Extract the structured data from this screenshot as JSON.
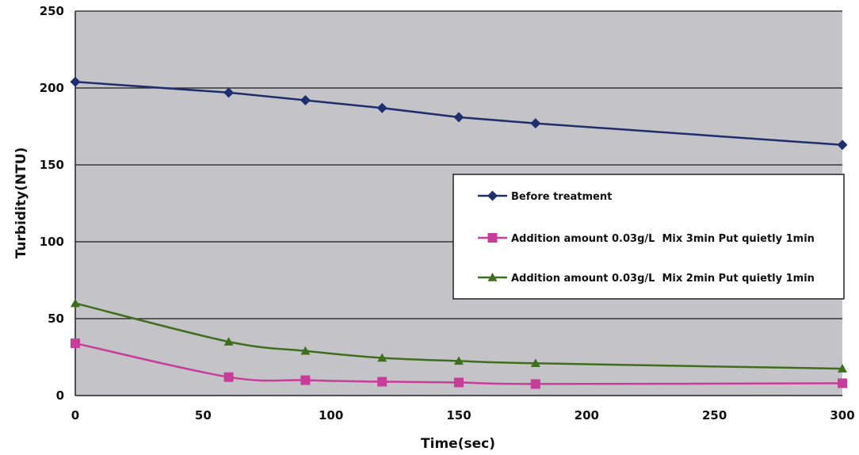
{
  "chart_data": {
    "type": "line",
    "xlabel": "Time(sec)",
    "ylabel": "Turbidity(NTU)",
    "xlim": [
      0,
      300
    ],
    "ylim": [
      0,
      250
    ],
    "x_ticks": [
      "0",
      "50",
      "100",
      "150",
      "200",
      "250",
      "300"
    ],
    "y_ticks": [
      "0",
      "50",
      "100",
      "150",
      "200",
      "250"
    ],
    "grid": "horizontal",
    "legend_position": "right",
    "x": [
      0,
      60,
      90,
      120,
      150,
      180,
      300
    ],
    "series": [
      {
        "name": "Before treatment",
        "values": [
          204,
          197,
          192,
          187,
          181,
          177,
          163
        ],
        "color": "#1f2f6e",
        "marker": "diamond"
      },
      {
        "name": "Addition amount 0.03g/L  Mix 3min Put quietly 1min",
        "values": [
          34,
          12,
          10,
          9,
          8.5,
          7.5,
          8
        ],
        "color": "#c83c9a",
        "marker": "square"
      },
      {
        "name": "Addition amount 0.03g/L  Mix 2min Put quietly 1min",
        "values": [
          60,
          35,
          29,
          24.5,
          22.5,
          21,
          17.5
        ],
        "color": "#3f6e1f",
        "marker": "triangle"
      }
    ],
    "plot_background": "#c4c4c8",
    "grid_color": "#1a1a1a"
  }
}
